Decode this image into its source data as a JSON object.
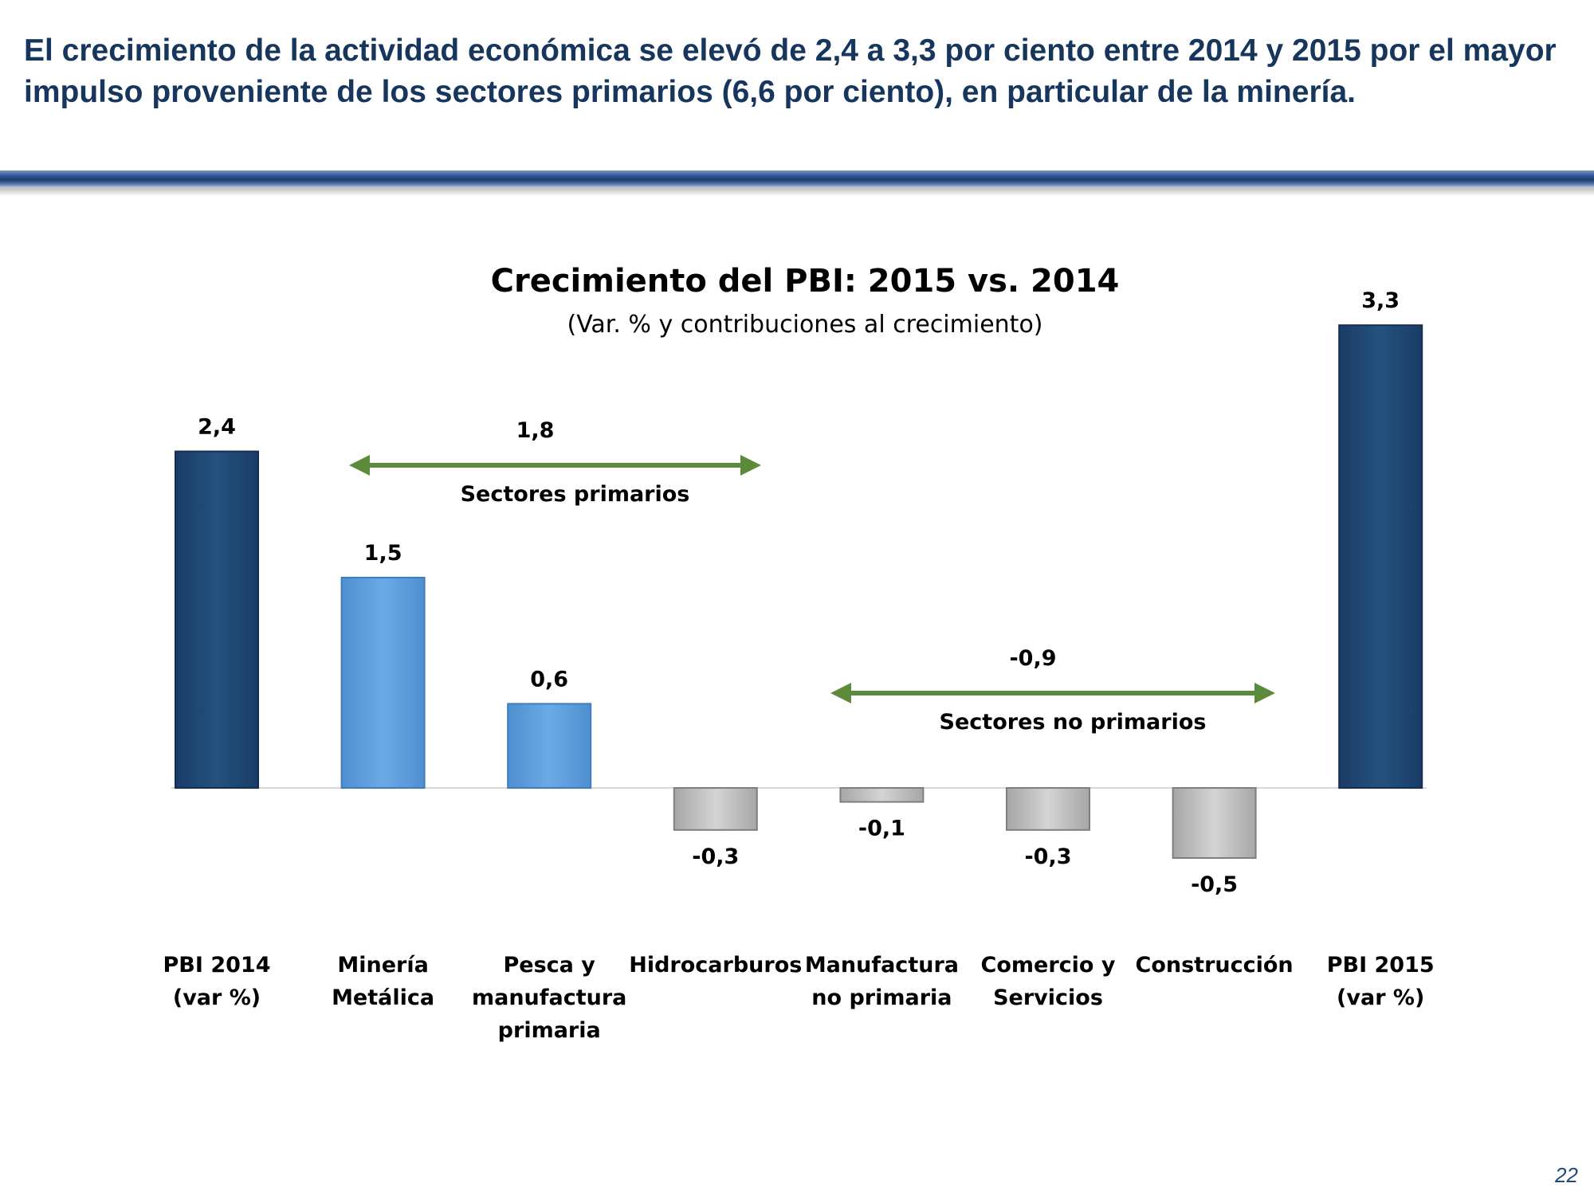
{
  "slide": {
    "title": "El crecimiento de la actividad económica se elevó de 2,4 a 3,3 por ciento entre 2014 y 2015 por el mayor impulso proveniente de los sectores primarios (6,6 por ciento), en particular de la minería.",
    "page_number": "22"
  },
  "colors": {
    "title": "#17365d",
    "pbi_bar": "#1f497d",
    "primary_bar": "#5b9bd5",
    "non_primary_bar": "#bfbfbf",
    "arrow": "#5a8a3a"
  },
  "chart_data": {
    "type": "bar",
    "title": "Crecimiento del PBI: 2015 vs. 2014",
    "subtitle": "(Var. % y contribuciones al crecimiento)",
    "categories": [
      [
        "PBI 2014",
        "(var %)"
      ],
      [
        "Minería",
        "Metálica"
      ],
      [
        "Pesca y",
        "manufactura",
        "primaria"
      ],
      [
        "Hidrocarburos"
      ],
      [
        "Manufactura",
        "no primaria"
      ],
      [
        "Comercio y",
        "Servicios"
      ],
      [
        "Construcción"
      ],
      [
        "PBI 2015",
        "(var %)"
      ]
    ],
    "values": [
      2.4,
      1.5,
      0.6,
      -0.3,
      -0.1,
      -0.3,
      -0.5,
      3.3
    ],
    "value_labels": [
      "2,4",
      "1,5",
      "0,6",
      "-0,3",
      "-0,1",
      "-0,3",
      "-0,5",
      "3,3"
    ],
    "bar_groups": [
      "pbi",
      "primary",
      "primary",
      "non_primary",
      "non_primary",
      "non_primary",
      "non_primary",
      "pbi"
    ],
    "ylim": [
      -0.8,
      3.6
    ],
    "grid": false,
    "annotations": [
      {
        "label": "Sectores primarios",
        "value": "1,8",
        "from": 1,
        "to": 3
      },
      {
        "label": "Sectores no primarios",
        "value": "-0,9",
        "from": 4,
        "to": 7
      }
    ]
  }
}
